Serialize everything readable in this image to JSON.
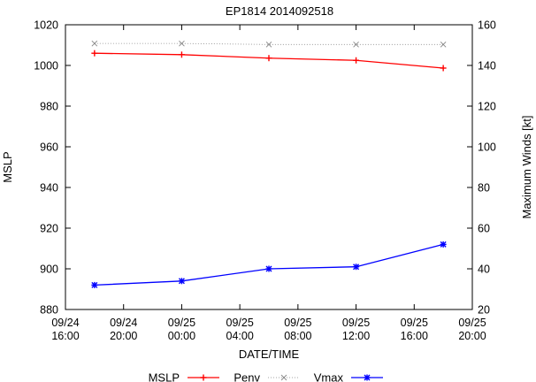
{
  "chart_data": {
    "type": "line",
    "title": "EP1814 2014092518",
    "xlabel": "DATE/TIME",
    "ylabel_left": "MSLP",
    "ylabel_right": "Maximum Winds [kt]",
    "x_ticks": [
      {
        "hours": 0,
        "line1": "09/24",
        "line2": "16:00"
      },
      {
        "hours": 4,
        "line1": "09/24",
        "line2": "20:00"
      },
      {
        "hours": 8,
        "line1": "09/25",
        "line2": "00:00"
      },
      {
        "hours": 12,
        "line1": "09/25",
        "line2": "04:00"
      },
      {
        "hours": 16,
        "line1": "09/25",
        "line2": "08:00"
      },
      {
        "hours": 20,
        "line1": "09/25",
        "line2": "12:00"
      },
      {
        "hours": 24,
        "line1": "09/25",
        "line2": "16:00"
      },
      {
        "hours": 28,
        "line1": "09/25",
        "line2": "20:00"
      }
    ],
    "xlim": [
      0,
      28
    ],
    "ylim_left": [
      880,
      1020
    ],
    "ylim_right": [
      20,
      160
    ],
    "y_ticks_left": [
      880,
      900,
      920,
      940,
      960,
      980,
      1000,
      1020
    ],
    "y_ticks_right": [
      20,
      40,
      60,
      80,
      100,
      120,
      140,
      160
    ],
    "series": [
      {
        "name": "MSLP",
        "axis": "left",
        "color": "#ff0000",
        "marker": "plus",
        "style": "solid",
        "hours": [
          2,
          8,
          14,
          20,
          26
        ],
        "values": [
          1006,
          1005.3,
          1003.6,
          1002.5,
          998.7
        ]
      },
      {
        "name": "Penv",
        "axis": "left",
        "color": "#888888",
        "marker": "x",
        "style": "dotted",
        "hours": [
          2,
          8,
          14,
          20,
          26
        ],
        "values": [
          1010.8,
          1010.8,
          1010.3,
          1010.3,
          1010.3
        ]
      },
      {
        "name": "Vmax",
        "axis": "right",
        "color": "#0000ff",
        "marker": "star",
        "style": "solid",
        "hours": [
          2,
          8,
          14,
          20,
          26
        ],
        "values": [
          32,
          34,
          40,
          41,
          52
        ]
      }
    ],
    "legend": [
      {
        "label": "MSLP",
        "series": 0
      },
      {
        "label": "Penv",
        "series": 1
      },
      {
        "label": "Vmax",
        "series": 2
      }
    ],
    "legend_placement": "bottom"
  }
}
